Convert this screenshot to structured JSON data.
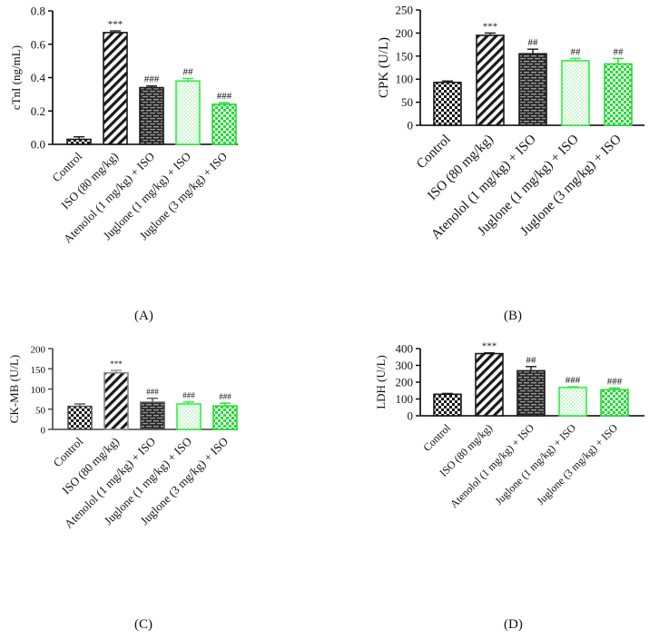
{
  "categories": [
    "Control",
    "ISO (80 mg/kg)",
    "Atenolol (1 mg/kg) + ISO",
    "Juglone (1 mg/kg) + ISO",
    "Juglone (3 mg/kg) + ISO"
  ],
  "colors": {
    "dark": "#1a1a1a",
    "medium": "#555555",
    "light_green": "#33ee44",
    "green": "#22dd33",
    "gray": "#888888"
  },
  "chart_data": [
    {
      "type": "bar",
      "panel": "(A)",
      "title": "",
      "xlabel": "",
      "ylabel": "cTnI (ng/mL)",
      "ylim": [
        0,
        0.8
      ],
      "yticks": [
        "0.0",
        "0.2",
        "0.4",
        "0.6",
        "0.8"
      ],
      "categories": [
        "Control",
        "ISO (80 mg/kg)",
        "Atenolol (1 mg/kg) + ISO",
        "Juglone (1 mg/kg) + ISO",
        "Juglone (3 mg/kg) + ISO"
      ],
      "values": [
        0.03,
        0.67,
        0.34,
        0.38,
        0.24
      ],
      "errors": [
        0.015,
        0.01,
        0.01,
        0.015,
        0.01
      ],
      "significance": [
        "",
        "***",
        "###",
        "##",
        "###"
      ]
    },
    {
      "type": "bar",
      "panel": "(B)",
      "title": "",
      "xlabel": "",
      "ylabel": "CPK (U/L)",
      "ylim": [
        0,
        250
      ],
      "yticks": [
        "0",
        "50",
        "100",
        "150",
        "200",
        "250"
      ],
      "categories": [
        "Control",
        "ISO (80 mg/kg)",
        "Atenolol (1 mg/kg) + ISO",
        "Juglone (1 mg/kg) + ISO",
        "Juglone (3 mg/kg) + ISO"
      ],
      "values": [
        93,
        195,
        155,
        140,
        133
      ],
      "errors": [
        3,
        5,
        10,
        5,
        12
      ],
      "significance": [
        "",
        "***",
        "##",
        "##",
        "##"
      ]
    },
    {
      "type": "bar",
      "panel": "(C)",
      "title": "",
      "xlabel": "",
      "ylabel": "CK-MB (U/L)",
      "ylim": [
        0,
        200
      ],
      "yticks": [
        "0",
        "50",
        "100",
        "150",
        "200"
      ],
      "categories": [
        "Control",
        "ISO (80 mg/kg)",
        "Atenolol (1 mg/kg) + ISO",
        "Juglone (1 mg/kg) + ISO",
        "Juglone (3 mg/kg) + ISO"
      ],
      "values": [
        57,
        140,
        67,
        63,
        58
      ],
      "errors": [
        6,
        6,
        10,
        5,
        7
      ],
      "significance": [
        "",
        "***",
        "###",
        "###",
        "###"
      ]
    },
    {
      "type": "bar",
      "panel": "(D)",
      "title": "",
      "xlabel": "",
      "ylabel": "LDH (U/L)",
      "ylim": [
        0,
        400
      ],
      "yticks": [
        "0",
        "100",
        "200",
        "300",
        "400"
      ],
      "categories": [
        "Control",
        "ISO (80 mg/kg)",
        "Atenolol (1 mg/kg) + ISO",
        "Juglone (1 mg/kg) + ISO",
        "Juglone (3 mg/kg) + ISO"
      ],
      "values": [
        128,
        370,
        268,
        168,
        155
      ],
      "errors": [
        5,
        5,
        25,
        5,
        10
      ],
      "significance": [
        "",
        "***",
        "##",
        "###",
        "###"
      ]
    }
  ]
}
